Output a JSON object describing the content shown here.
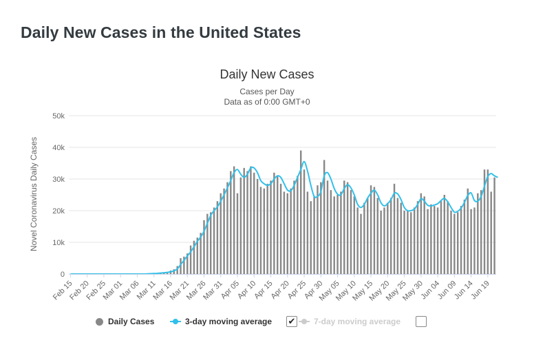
{
  "page": {
    "title": "Daily New Cases in the United States"
  },
  "chart_data": {
    "type": "bar",
    "title": "Daily New Cases",
    "subtitle": "Cases per Day",
    "subtitle2": "Data as of 0:00 GMT+0",
    "ylabel": "Novel Coronavirus Daily Cases",
    "xlabel": "",
    "ylim": [
      0,
      50000
    ],
    "yticks": [
      0,
      10000,
      20000,
      30000,
      40000,
      50000
    ],
    "ytick_labels": [
      "0",
      "10k",
      "20k",
      "30k",
      "40k",
      "50k"
    ],
    "start_label": "Feb 15",
    "xtick_labels": [
      "Feb 15",
      "Feb 20",
      "Feb 25",
      "Mar 01",
      "Mar 06",
      "Mar 11",
      "Mar 16",
      "Mar 21",
      "Mar 26",
      "Mar 31",
      "Apr 05",
      "Apr 10",
      "Apr 15",
      "Apr 20",
      "Apr 25",
      "Apr 30",
      "May 05",
      "May 10",
      "May 15",
      "May 20",
      "May 25",
      "May 30",
      "Jun 04",
      "Jun 09",
      "Jun 14",
      "Jun 19"
    ],
    "grid": true,
    "legend_position": "bottom",
    "series": [
      {
        "name": "Daily Cases",
        "type": "bar",
        "color": "#888888",
        "values": [
          0,
          0,
          0,
          0,
          0,
          0,
          0,
          0,
          0,
          0,
          0,
          0,
          0,
          0,
          0,
          0,
          0,
          0,
          0,
          0,
          0,
          0,
          0,
          100,
          100,
          200,
          300,
          400,
          500,
          700,
          1100,
          1500,
          2500,
          5000,
          5500,
          6500,
          9000,
          10500,
          11500,
          13000,
          17000,
          19000,
          19500,
          21000,
          23000,
          25500,
          27000,
          29000,
          32500,
          34000,
          25500,
          30500,
          33500,
          32500,
          34000,
          32000,
          30000,
          27500,
          27000,
          28500,
          29500,
          32000,
          31000,
          28500,
          26000,
          25500,
          27000,
          29500,
          31000,
          39000,
          33000,
          26000,
          23000,
          24500,
          28000,
          29000,
          36000,
          29500,
          26500,
          24500,
          25000,
          26000,
          29500,
          29000,
          26500,
          24500,
          21000,
          19000,
          22500,
          24000,
          28000,
          27500,
          24000,
          20000,
          21000,
          22500,
          24000,
          28500,
          24000,
          22500,
          20000,
          20000,
          19500,
          21000,
          23000,
          25500,
          24500,
          20500,
          22000,
          21500,
          21000,
          23000,
          25000,
          23000,
          20000,
          19000,
          19500,
          21500,
          23500,
          27000,
          20500,
          21000,
          25500,
          26500,
          33000,
          33000,
          26000,
          30500
        ]
      },
      {
        "name": "3-day moving average",
        "type": "line",
        "color": "#31c0ea",
        "values": [
          0,
          0,
          0,
          0,
          0,
          0,
          0,
          0,
          0,
          0,
          0,
          0,
          0,
          0,
          0,
          0,
          0,
          0,
          0,
          0,
          0,
          0,
          0,
          50,
          100,
          150,
          200,
          300,
          400,
          500,
          700,
          1000,
          1600,
          3000,
          4300,
          5700,
          7000,
          8600,
          10300,
          11700,
          13500,
          16000,
          18500,
          20000,
          21200,
          23000,
          25000,
          27200,
          29500,
          32000,
          33000,
          31500,
          30500,
          31500,
          33500,
          33500,
          32000,
          29500,
          28500,
          28000,
          28500,
          30000,
          31000,
          30500,
          28500,
          26500,
          26300,
          28000,
          30500,
          33000,
          35500,
          32500,
          28000,
          24500,
          24500,
          26000,
          31000,
          32000,
          30000,
          27000,
          25200,
          25000,
          27000,
          28200,
          27200,
          25000,
          22000,
          21000,
          22000,
          24000,
          25500,
          26500,
          25000,
          22500,
          21500,
          22200,
          23500,
          25500,
          25300,
          23500,
          21000,
          20000,
          20000,
          20500,
          22000,
          23800,
          23000,
          21700,
          21500,
          21800,
          22200,
          23200,
          23900,
          22800,
          21000,
          19500,
          19800,
          20800,
          22600,
          24800,
          25600,
          23200,
          23000,
          24500,
          27700,
          30800,
          31700,
          31000,
          30500
        ]
      },
      {
        "name": "7-day moving average",
        "type": "line",
        "color": "#cccccc",
        "visible": false,
        "values": []
      }
    ]
  },
  "legend": {
    "daily_label": "Daily Cases",
    "avg3_label": "3-day moving average",
    "avg7_label": "7-day moving average",
    "avg3_check": "✔",
    "avg7_check": ""
  }
}
